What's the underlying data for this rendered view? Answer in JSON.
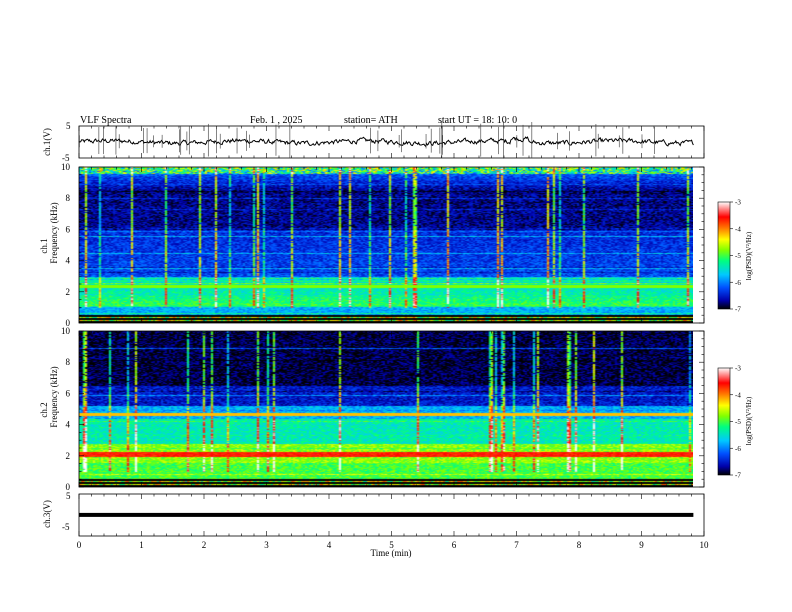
{
  "header": {
    "title": "VLF  Spectra",
    "date": "Feb. 1  , 2025",
    "station": "station= ATH",
    "start_ut": "start  UT  =    18: 10: 0"
  },
  "chart_data": [
    {
      "type": "line",
      "name": "ch1-waveform",
      "ylabel": "ch.1(V)",
      "yticks": [
        "5",
        "-5"
      ],
      "ylim": [
        -5,
        5
      ],
      "xlim": [
        0,
        10
      ],
      "series_color": "#000000",
      "data_end_min": 9.83
    },
    {
      "type": "heatmap",
      "name": "ch1-spectrogram",
      "ylabel": "ch.1\nFrequency  (kHz)",
      "ylabel_lines": [
        "ch.1",
        "Frequency  (kHz)"
      ],
      "yticks": [
        "0",
        "2",
        "4",
        "6",
        "8",
        "10"
      ],
      "ylim": [
        0,
        10
      ],
      "xlim": [
        0,
        10
      ],
      "data_end_min": 9.83,
      "colorbar": {
        "label": "log(PSD)(V²/Hz)",
        "ticks": [
          "-3",
          "-4",
          "-5",
          "-6",
          "-7"
        ],
        "range": [
          -7,
          -3
        ],
        "colors": [
          "#000000",
          "#0000aa",
          "#0050ff",
          "#00c8ff",
          "#00ff80",
          "#80ff00",
          "#ffff00",
          "#ff8000",
          "#ff0000",
          "#ffffff"
        ]
      }
    },
    {
      "type": "heatmap",
      "name": "ch2-spectrogram",
      "ylabel": "ch.2\nFrequency  (kHz)",
      "ylabel_lines": [
        "ch.2",
        "Frequency  (kHz)"
      ],
      "yticks": [
        "0",
        "2",
        "4",
        "6",
        "8",
        "10"
      ],
      "ylim": [
        0,
        10
      ],
      "xlim": [
        0,
        10
      ],
      "data_end_min": 9.83,
      "colorbar": {
        "label": "log(PSD)(V²/Hz)",
        "ticks": [
          "-3",
          "-4",
          "-5",
          "-6",
          "-7"
        ],
        "range": [
          -7,
          -3
        ],
        "colors": [
          "#000000",
          "#0000aa",
          "#0050ff",
          "#00c8ff",
          "#00ff80",
          "#80ff00",
          "#ffff00",
          "#ff8000",
          "#ff0000",
          "#ffffff"
        ]
      }
    },
    {
      "type": "line",
      "name": "ch3-waveform",
      "ylabel": "ch.3(V)",
      "yticks": [
        "5",
        "-5"
      ],
      "ylim": [
        -5,
        5
      ],
      "xlim": [
        0,
        10
      ],
      "series_color": "#000000",
      "data_end_min": 9.83
    }
  ],
  "xaxis": {
    "label": "Time  (min)",
    "ticks": [
      "0",
      "1",
      "2",
      "3",
      "4",
      "5",
      "6",
      "7",
      "8",
      "9",
      "10"
    ]
  }
}
